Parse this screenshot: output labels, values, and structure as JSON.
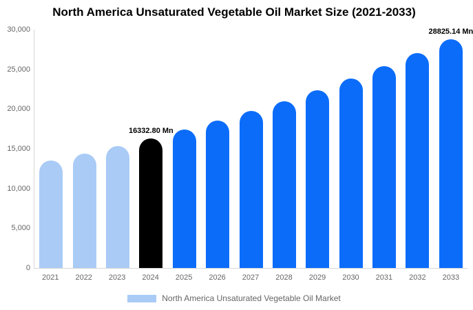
{
  "colors": {
    "historical": "#a9cbf6",
    "current": "#000000",
    "forecast": "#0b6cfa",
    "axis_line": "#d6d6d6",
    "tick_text": "#666666",
    "title_text": "#000000"
  },
  "chart_data": {
    "type": "bar",
    "title": "North America Unsaturated Vegetable Oil Market Size (2021-2033)",
    "categories": [
      "2021",
      "2022",
      "2023",
      "2024",
      "2025",
      "2026",
      "2027",
      "2028",
      "2029",
      "2030",
      "2031",
      "2032",
      "2033"
    ],
    "series": [
      {
        "name": "North America Unsaturated Vegetable Oil Market",
        "values": [
          13515.3,
          14395.9,
          15333.8,
          16332.8,
          17396.9,
          18530.3,
          19737.7,
          21023.7,
          22393.6,
          23852.7,
          25406.9,
          27062.4,
          28825.14
        ]
      }
    ],
    "bar_roles": [
      "historical",
      "historical",
      "historical",
      "current",
      "forecast",
      "forecast",
      "forecast",
      "forecast",
      "forecast",
      "forecast",
      "forecast",
      "forecast",
      "forecast"
    ],
    "annotations": [
      {
        "category": "2024",
        "label": "16332.80 Mn"
      },
      {
        "category": "2033",
        "label": "28825.14 Mn"
      }
    ],
    "xlabel": "",
    "ylabel": "",
    "ylim": [
      0,
      30000
    ],
    "ytick_step": 5000,
    "yticks": [
      "0",
      "5,000",
      "10,000",
      "15,000",
      "20,000",
      "25,000",
      "30,000"
    ],
    "grid": false,
    "legend": {
      "position": "bottom",
      "label": "North America Unsaturated Vegetable Oil Market"
    }
  }
}
